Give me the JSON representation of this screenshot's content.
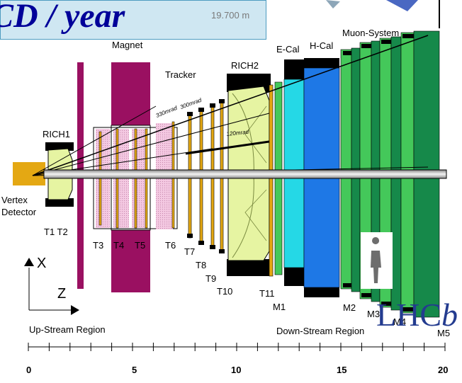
{
  "banner": {
    "text": "CD / year",
    "distance": "19.700 m"
  },
  "labels": {
    "magnet": "Magnet",
    "tracker": "Tracker",
    "rich2": "RICH2",
    "ecal": "E-Cal",
    "hcal": "H-Cal",
    "muon_system": "Muon-System",
    "rich1": "RICH1",
    "vertex": "Vertex",
    "detector": "Detector",
    "angle_330": "330mrad",
    "angle_300": "300mrad",
    "angle_120": "120mrad",
    "t1_t2": "T1 T2",
    "t3": "T3",
    "t4": "T4",
    "t5": "T5",
    "t6": "T6",
    "t7": "T7",
    "t8": "T8",
    "t9": "T9",
    "t10": "T10",
    "t11": "T11",
    "m1": "M1",
    "m2": "M2",
    "m3": "M3",
    "m4": "M4",
    "m5": "M5",
    "axis_x": "X",
    "axis_z": "Z",
    "upstream": "Up-Stream Region",
    "downstream": "Down-Stream Region"
  },
  "brand": {
    "prefix": "LHC",
    "suffix": "b"
  },
  "scale_numbers": [
    "0",
    "5",
    "10",
    "15",
    "20"
  ],
  "colors": {
    "magnet": "#9a1061",
    "rich_gas": "#e6f4a2",
    "ecal": "#25d8e6",
    "hcal": "#1e78e6",
    "muon_light": "#44c85a",
    "muon_dark": "#16894a",
    "trackers": "#e4a813",
    "banner_text": "#000099",
    "brand": "#233b8f"
  }
}
